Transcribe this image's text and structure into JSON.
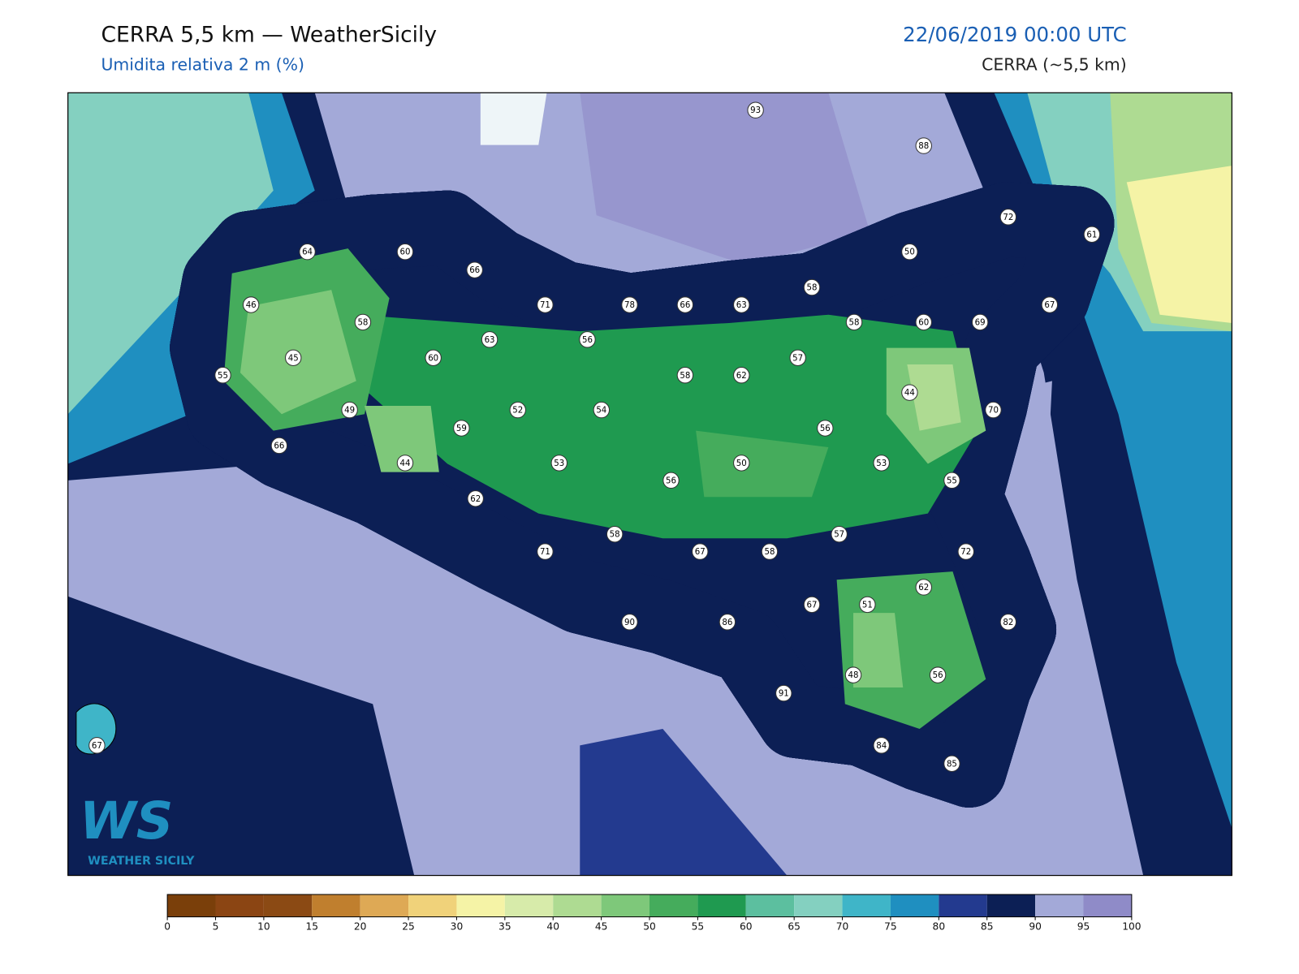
{
  "header": {
    "title": "CERRA 5,5 km — WeatherSicily",
    "subtitle": "Umidita relativa 2 m (%)",
    "valid_time": "22/06/2019 00:00 UTC",
    "model": "CERRA (~5,5 km)"
  },
  "stations": [
    93,
    88,
    72,
    61,
    64,
    60,
    66,
    50,
    58,
    71,
    78,
    66,
    63,
    46,
    67,
    58,
    58,
    60,
    69,
    63,
    56,
    45,
    60,
    57,
    55,
    58,
    62,
    44,
    49,
    52,
    54,
    70,
    59,
    56,
    66,
    53,
    50,
    53,
    44,
    56,
    55,
    62,
    57,
    58,
    71,
    67,
    58,
    72,
    62,
    67,
    51,
    90,
    86,
    82,
    91,
    48,
    56,
    67,
    84,
    85
  ],
  "colorbar": {
    "ticks": [
      0,
      5,
      10,
      15,
      20,
      25,
      30,
      35,
      40,
      45,
      50,
      55,
      60,
      65,
      70,
      75,
      80,
      85,
      90,
      95,
      100
    ],
    "colors": [
      "#7a3f0a",
      "#8b4513",
      "#8b4a14",
      "#c07f2e",
      "#dea955",
      "#f0d27a",
      "#f5f3a6",
      "#d7ebaa",
      "#aedb92",
      "#7ec87a",
      "#45ac5c",
      "#1f9a50",
      "#5cbf9f",
      "#84d0c0",
      "#3fb5c8",
      "#1f8fc0",
      "#233a8f",
      "#0c1f55",
      "#a3a9d8",
      "#8f8bc8"
    ]
  },
  "logo": {
    "letters": "WS",
    "text": "WEATHER SICILY"
  }
}
